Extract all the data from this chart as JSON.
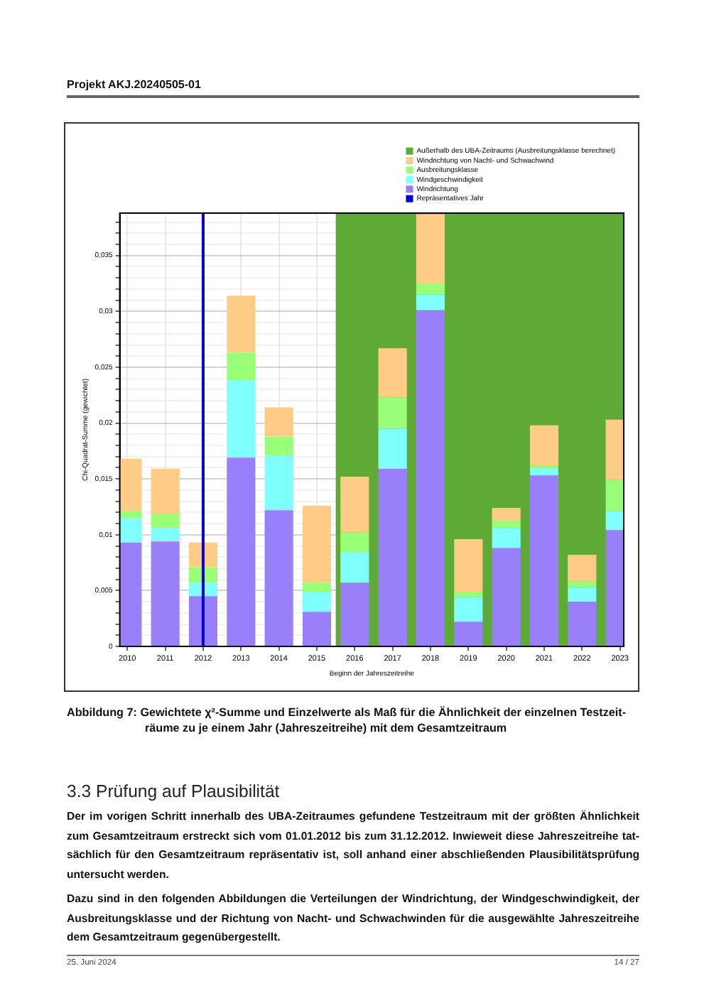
{
  "chart_data": {
    "type": "bar",
    "stacked": true,
    "xlabel": "Beginn der Jahreszeitreihe",
    "ylabel": "Chi-Quadrat-Summe (gewichtet)",
    "x": [
      2010,
      2011,
      2012,
      2013,
      2014,
      2015,
      2016,
      2017,
      2018,
      2019,
      2020,
      2021,
      2022,
      2023
    ],
    "series": [
      {
        "name": "Windrichtung",
        "color": "#9980fa",
        "values": [
          0.0093,
          0.0094,
          0.0045,
          0.0169,
          0.0122,
          0.0031,
          0.0057,
          0.0159,
          0.0301,
          0.0022,
          0.0088,
          0.0153,
          0.004,
          0.0104
        ]
      },
      {
        "name": "Windgeschwindigkeit",
        "color": "#80ffff",
        "values": [
          0.0022,
          0.0012,
          0.0012,
          0.0069,
          0.0049,
          0.0018,
          0.0027,
          0.0036,
          0.0014,
          0.0022,
          0.0018,
          0.0006,
          0.0013,
          0.0017
        ]
      },
      {
        "name": "Ausbreitungsklasse",
        "color": "#99ff77",
        "values": [
          0.0006,
          0.0013,
          0.0014,
          0.0025,
          0.0017,
          0.0008,
          0.0018,
          0.0028,
          0.001,
          0.0005,
          0.0006,
          0.0003,
          0.0005,
          0.0028
        ]
      },
      {
        "name": "Windrichtung von Nacht- und Schwachwind",
        "color": "#ffcc88",
        "values": [
          0.0047,
          0.004,
          0.0022,
          0.0051,
          0.0026,
          0.0069,
          0.005,
          0.0044,
          0.0062,
          0.0047,
          0.0012,
          0.0036,
          0.0024,
          0.0054
        ]
      }
    ],
    "xlim": [
      2009.8,
      2023.1
    ],
    "xticks": [
      2010,
      2011,
      2012,
      2013,
      2014,
      2015,
      2016,
      2017,
      2018,
      2019,
      2020,
      2021,
      2022,
      2023
    ],
    "ylim": [
      0,
      0.0388
    ],
    "yticks": [
      0,
      {
        "value": 0.001,
        "label": null
      },
      {
        "value": 0.002,
        "label": null
      },
      {
        "value": 0.003,
        "label": null
      },
      {
        "value": 0.004,
        "label": null
      },
      {
        "value": 0.005,
        "label": "0,005"
      },
      {
        "value": 0.006,
        "label": null
      },
      {
        "value": 0.007,
        "label": null
      },
      {
        "value": 0.008,
        "label": null
      },
      {
        "value": 0.009,
        "label": null
      },
      {
        "value": 0.01,
        "label": "0,01"
      },
      {
        "value": 0.011,
        "label": null
      },
      {
        "value": 0.012,
        "label": null
      },
      {
        "value": 0.013,
        "label": null
      },
      {
        "value": 0.014,
        "label": null
      },
      {
        "value": 0.015,
        "label": "0,015"
      },
      {
        "value": 0.016,
        "label": null
      },
      {
        "value": 0.017,
        "label": null
      },
      {
        "value": 0.018,
        "label": null
      },
      {
        "value": 0.019,
        "label": null
      },
      {
        "value": 0.02,
        "label": "0,02"
      },
      {
        "value": 0.021,
        "label": null
      },
      {
        "value": 0.022,
        "label": null
      },
      {
        "value": 0.023,
        "label": null
      },
      {
        "value": 0.024,
        "label": null
      },
      {
        "value": 0.025,
        "label": "0,025"
      },
      {
        "value": 0.026,
        "label": null
      },
      {
        "value": 0.027,
        "label": null
      },
      {
        "value": 0.028,
        "label": null
      },
      {
        "value": 0.029,
        "label": null
      },
      {
        "value": 0.03,
        "label": "0,03"
      },
      {
        "value": 0.031,
        "label": null
      },
      {
        "value": 0.032,
        "label": null
      },
      {
        "value": 0.033,
        "label": null
      },
      {
        "value": 0.034,
        "label": null
      },
      {
        "value": 0.035,
        "label": "0,035"
      },
      {
        "value": 0.036,
        "label": null
      },
      {
        "value": 0.037,
        "label": null
      },
      {
        "value": 0.038,
        "label": null
      }
    ],
    "grid": true,
    "legend": "top right",
    "bands": [
      {
        "axis": "x",
        "from": 2015.5,
        "to": 2023.1,
        "label": "Außerhalb des UBA-Zeitraums (Ausbreitungsklasse berechnet)",
        "color": "#5faa36"
      }
    ],
    "ref_lines": [
      {
        "axis": "x",
        "value": 2012,
        "label": "Repräsentatives Jahr",
        "color": "#0000dd"
      }
    ],
    "annotations": [
      "Projekt AKJ.20240505-01",
      "Abbildung 7: Gewichtete χ²-Summe und Einzelwerte als Maß für die Ähnlichkeit der einzelnen Testzeit-räume zu je einem Jahr (Jahreszeitreihe) mit dem Gesamtzeitraum",
      "3.3 Prüfung auf Plausibilität",
      "Der im vorigen Schritt innerhalb des UBA-Zeitraumes gefundene Testzeitraum mit der größten Ähnlichkeit zum Gesamtzeitraum erstreckt sich vom 01.01.2012 bis zum 31.12.2012. Inwieweit diese Jahreszeitreihe tat-sächlich für den Gesamtzeitraum repräsentativ ist, soll anhand einer abschließenden Plausibilitätsprüfung untersucht werden.",
      "Dazu sind in den folgenden Abbildungen die Verteilungen der Windrichtung, der Windgeschwindigkeit, der Ausbreitungsklasse und der Richtung von Nacht- und Schwachwinden für die ausgewählte Jahreszeitreihe dem Gesamtzeitraum gegenübergestellt.",
      "25. Juni 2024",
      "14 / 27"
    ]
  }
}
